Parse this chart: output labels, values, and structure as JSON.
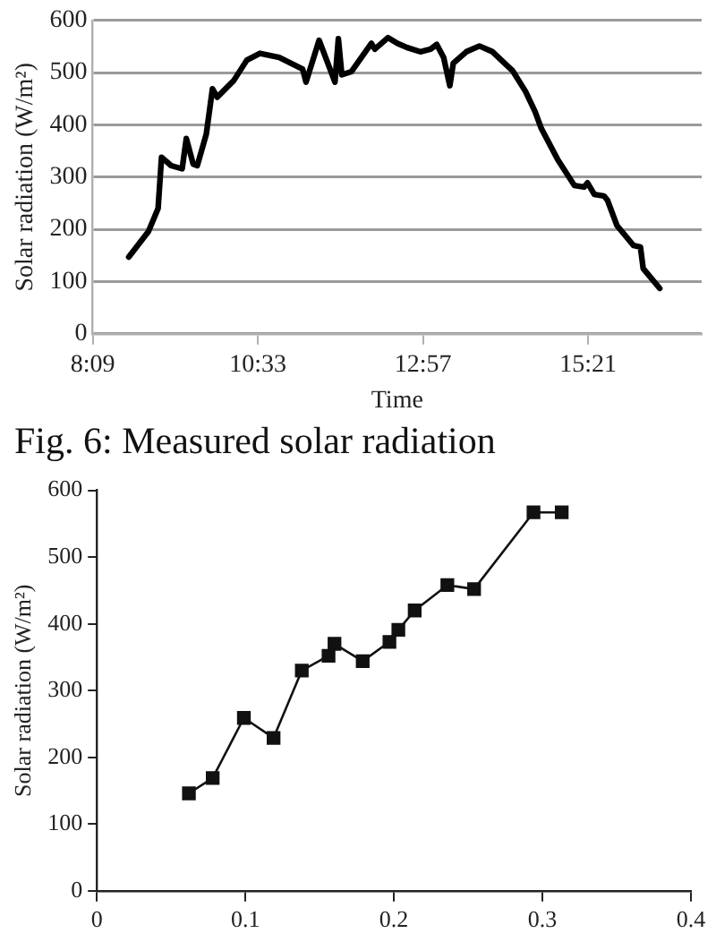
{
  "chart_data": [
    {
      "type": "line",
      "xlabel": "Time",
      "ylabel": "Solar radiation (W/m²)",
      "color": "#000000",
      "marker": "none",
      "grid": "y",
      "x": [
        8.674,
        8.96,
        9.1,
        9.15,
        9.29,
        9.45,
        9.51,
        9.61,
        9.67,
        9.8,
        9.89,
        9.96,
        10.2,
        10.39,
        10.58,
        10.86,
        11.2,
        11.25,
        11.44,
        11.67,
        11.72,
        11.77,
        11.91,
        12.2,
        12.25,
        12.44,
        12.58,
        12.72,
        12.91,
        13.06,
        13.15,
        13.25,
        13.34,
        13.39,
        13.58,
        13.77,
        13.96,
        14.25,
        14.44,
        14.58,
        14.67,
        14.91,
        15.15,
        15.29,
        15.34,
        15.44,
        15.58,
        15.63,
        15.77,
        16.01,
        16.11,
        16.15,
        16.39
      ],
      "values": [
        147,
        196,
        240,
        338,
        322,
        316,
        374,
        325,
        322,
        382,
        469,
        453,
        485,
        524,
        537,
        529,
        507,
        482,
        562,
        482,
        565,
        496,
        502,
        556,
        545,
        567,
        556,
        548,
        540,
        545,
        554,
        529,
        475,
        518,
        540,
        551,
        540,
        504,
        464,
        425,
        393,
        333,
        284,
        281,
        289,
        267,
        264,
        256,
        207,
        169,
        166,
        125,
        87
      ],
      "xlim": [
        8.15,
        17.0
      ],
      "xticks": [
        {
          "value": 8.15,
          "label": "8:09"
        },
        {
          "value": 10.55,
          "label": "10:33"
        },
        {
          "value": 12.95,
          "label": "12:57"
        },
        {
          "value": 15.35,
          "label": "15:21"
        }
      ],
      "ylim": [
        0,
        600
      ],
      "yticks": [
        0,
        100,
        200,
        300,
        400,
        500,
        600
      ],
      "annotations": [
        "Fig. 6: Measured solar radiation"
      ]
    },
    {
      "type": "line",
      "ylabel": "Solar radiation (W/m²)",
      "color": "#111111",
      "marker": "square",
      "grid": false,
      "x": [
        0.062,
        0.078,
        0.099,
        0.119,
        0.138,
        0.156,
        0.16,
        0.179,
        0.197,
        0.203,
        0.214,
        0.236,
        0.254,
        0.294,
        0.313
      ],
      "values": [
        146,
        169,
        259,
        229,
        330,
        352,
        370,
        344,
        373,
        391,
        420,
        458,
        452,
        567,
        567
      ],
      "xlim": [
        0,
        0.4
      ],
      "xticks": [
        0,
        0.1,
        0.2,
        0.3,
        0.4
      ],
      "ylim": [
        0,
        600
      ],
      "yticks": [
        0,
        100,
        200,
        300,
        400,
        500,
        600
      ]
    }
  ]
}
